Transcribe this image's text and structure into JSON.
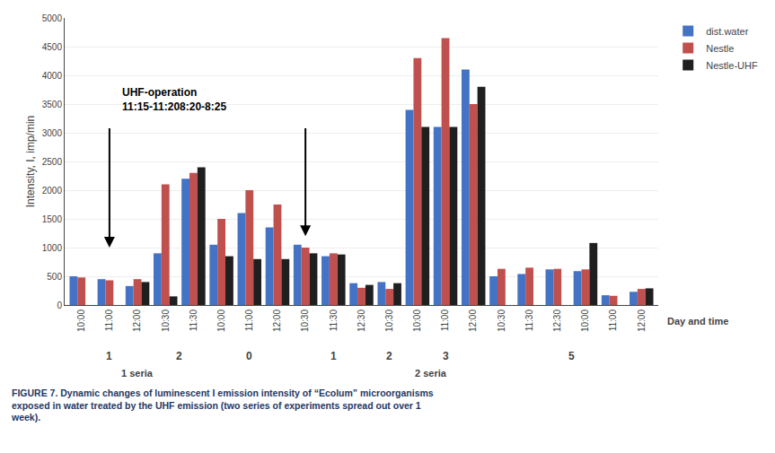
{
  "chart_data": {
    "type": "bar",
    "ylabel": "Intensity, I, imp/min",
    "xlabel": "Day and time",
    "categories": [
      "10:00",
      "11:00",
      "12:00",
      "10:30",
      "11:30",
      "10:00",
      "11:00",
      "12:00",
      "10:30",
      "11:30",
      "12:30",
      "10:30",
      "10:00",
      "11:00",
      "12:00",
      "10:30",
      "11:30",
      "12:30",
      "10:00",
      "11:00",
      "12:00"
    ],
    "series": [
      {
        "name": "dist.water",
        "color": "#4472C4",
        "values": [
          500,
          450,
          330,
          900,
          2200,
          1050,
          1600,
          1350,
          1050,
          850,
          380,
          400,
          3400,
          3100,
          4100,
          500,
          540,
          620,
          590,
          170,
          230
        ]
      },
      {
        "name": "Nestle",
        "color": "#C0504D",
        "values": [
          480,
          430,
          450,
          2100,
          2300,
          1500,
          2000,
          1750,
          1000,
          900,
          300,
          280,
          4300,
          4650,
          3500,
          630,
          650,
          630,
          620,
          160,
          280
        ]
      },
      {
        "name": "Nestle-UHF",
        "color": "#1F1F1F",
        "values": [
          0,
          0,
          400,
          150,
          2400,
          850,
          800,
          800,
          900,
          880,
          350,
          380,
          3100,
          3100,
          3800,
          0,
          0,
          0,
          1080,
          0,
          290
        ]
      }
    ],
    "ylim": [
      0,
      5000
    ],
    "yticks": [
      0,
      500,
      1000,
      1500,
      2000,
      2500,
      3000,
      3500,
      4000,
      4500,
      5000
    ],
    "grid": true,
    "legend": "right",
    "annotations": [
      "UHF-operation",
      "11:15-11:208:20-8:25"
    ],
    "arrows": [
      {
        "x": 1,
        "from": 3100,
        "to": 1000
      },
      {
        "x": 8,
        "from": 3100,
        "to": 1200
      }
    ],
    "day_markers": [
      {
        "label": "1",
        "indices": [
          0,
          1,
          2
        ]
      },
      {
        "label": "2",
        "indices": [
          3,
          4
        ]
      },
      {
        "label": "0",
        "indices": [
          5,
          6,
          7
        ]
      },
      {
        "label": "1",
        "indices": [
          8,
          9,
          10
        ]
      },
      {
        "label": "2",
        "indices": [
          11
        ]
      },
      {
        "label": "3",
        "indices": [
          12,
          13,
          14
        ]
      },
      {
        "label": "5",
        "indices": [
          15,
          16,
          17,
          18,
          19,
          20
        ]
      }
    ],
    "series_groups": [
      {
        "label": "1 seria",
        "indices": [
          0,
          1,
          2,
          3,
          4
        ]
      },
      {
        "label": "2 seria",
        "indices": [
          5,
          6,
          7,
          8,
          9,
          10,
          11,
          12,
          13,
          14,
          15,
          16,
          17,
          18,
          19,
          20
        ]
      }
    ],
    "caption": "FIGURE 7. Dynamic changes of luminescent I emission intensity of “Ecolum” microorganisms\nexposed in water treated by the UHF emission (two series of experiments spread out over 1\nweek).",
    "caption_color": "#1F3864"
  }
}
